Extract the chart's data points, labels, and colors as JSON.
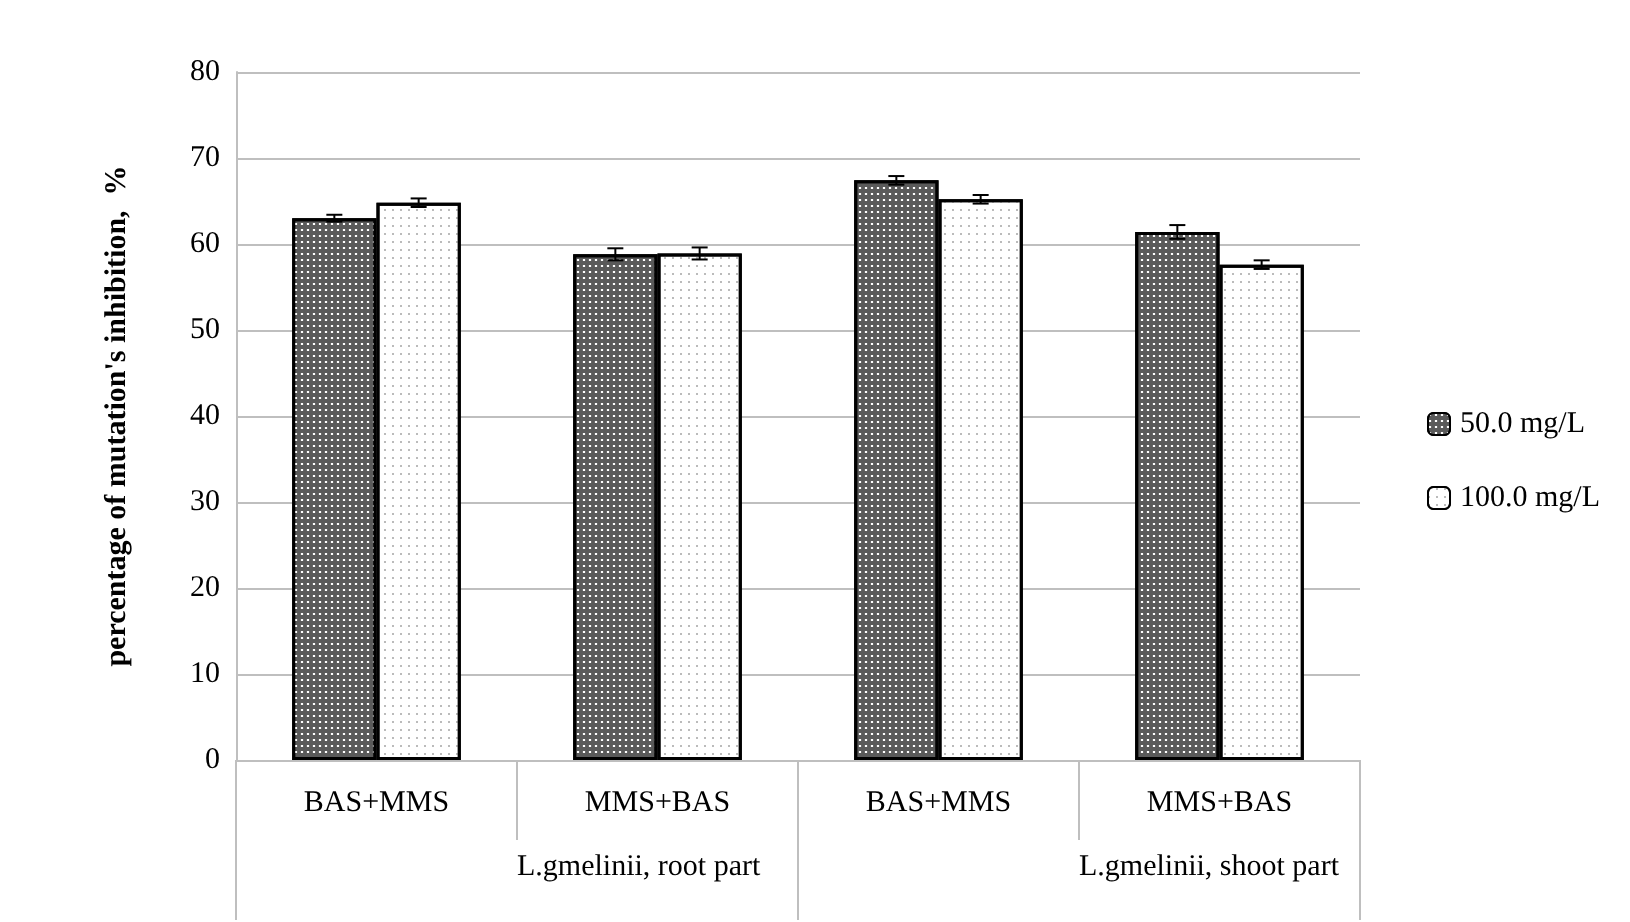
{
  "chart_data": {
    "type": "bar",
    "ylabel": "percentage of mutation's inhibition,  %",
    "categories": [
      "BAS+MMS",
      "MMS+BAS",
      "BAS+MMS",
      "MMS+BAS"
    ],
    "series": [
      {
        "name": "50.0 mg/L",
        "color": "#5a5a5a",
        "values": [
          63.0,
          58.8,
          67.4,
          61.4
        ],
        "errors": [
          0.4,
          0.7,
          0.5,
          0.8
        ]
      },
      {
        "name": "100.0 mg/L",
        "color": "#ffffff",
        "values": [
          64.8,
          58.9,
          65.2,
          57.6
        ],
        "errors": [
          0.5,
          0.7,
          0.5,
          0.5
        ]
      }
    ],
    "annotations": [
      "L.gmelinii, root part",
      "L.gmelinii, shoot part"
    ],
    "ylim": [
      0,
      80
    ],
    "yticks": [
      0,
      10,
      20,
      30,
      40,
      50,
      60,
      70,
      80
    ],
    "grid": "y",
    "legend": "right"
  }
}
